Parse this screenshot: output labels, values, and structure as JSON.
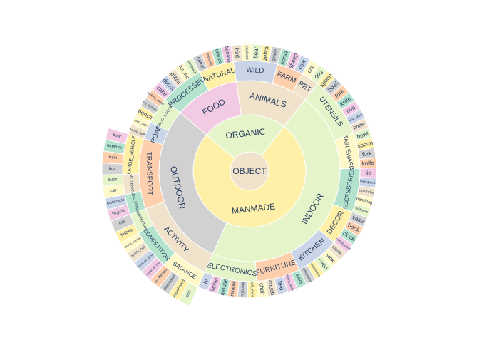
{
  "colors": {
    "green": "#e5f5c9",
    "yellow": "#fff0a8",
    "gray": "#d1d1d1",
    "orange": "#fdcfac",
    "teal": "#b3e2cd",
    "pink": "#f3cae3",
    "blue": "#cbd5e8",
    "tan": "#f1e2cc",
    "cream": "#fff8c8",
    "text": "#2a3f5f",
    "stroke": "#ffffff"
  },
  "chart_data": {
    "type": "sunburst",
    "title": "",
    "root": {
      "label": "OBJECT",
      "children": [
        {
          "label": "MANMADE",
          "children": [
            {
              "label": "INDOOR",
              "children": [
                {
                  "label": "UTENSILS",
                  "children": [
                    {
                      "label": "spoon",
                      "value": 1
                    },
                    {
                      "label": "bowl",
                      "value": 1
                    },
                    {
                      "label": "fork",
                      "value": 1
                    },
                    {
                      "label": "knife",
                      "value": 1
                    },
                    {
                      "label": "cup",
                      "value": 1
                    },
                    {
                      "label": "wine_glass",
                      "value": 1
                    },
                    {
                      "label": "bottle",
                      "value": 1
                    }
                  ]
                },
                {
                  "label": "TABLEWARE",
                  "children": [
                    {
                      "label": "bowl",
                      "value": 1
                    },
                    {
                      "label": "spoon",
                      "value": 1
                    },
                    {
                      "label": "fork",
                      "value": 1
                    },
                    {
                      "label": "knife",
                      "value": 1
                    }
                  ]
                },
                {
                  "label": "ACCESSORIES",
                  "children": [
                    {
                      "label": "tie",
                      "value": 1
                    },
                    {
                      "label": "backpack",
                      "value": 1
                    },
                    {
                      "label": "umbrella",
                      "value": 1
                    },
                    {
                      "label": "handbag",
                      "value": 1
                    },
                    {
                      "label": "suitcase",
                      "value": 1
                    }
                  ]
                },
                {
                  "label": "DECOR",
                  "children": [
                    {
                      "label": "vase",
                      "value": 1
                    },
                    {
                      "label": "book",
                      "value": 1
                    },
                    {
                      "label": "clock",
                      "value": 1
                    },
                    {
                      "label": "potted_plant",
                      "value": 1
                    }
                  ]
                },
                {
                  "label": "KITCHEN",
                  "children": [
                    {
                      "label": "toaster",
                      "value": 1
                    },
                    {
                      "label": "sink",
                      "value": 1
                    },
                    {
                      "label": "oven",
                      "value": 1
                    },
                    {
                      "label": "microwave",
                      "value": 1
                    },
                    {
                      "label": "refrigerator",
                      "value": 1
                    }
                  ]
                },
                {
                  "label": "FURNITURE",
                  "children": [
                    {
                      "label": "toilet",
                      "value": 1
                    },
                    {
                      "label": "dining_table",
                      "value": 1
                    },
                    {
                      "label": "bed",
                      "value": 1
                    },
                    {
                      "label": "couch",
                      "value": 1
                    },
                    {
                      "label": "chair",
                      "value": 1
                    }
                  ]
                },
                {
                  "label": "ELECTRONICS",
                  "children": [
                    {
                      "label": "cell_phone",
                      "value": 1
                    },
                    {
                      "label": "keyboard",
                      "value": 1
                    },
                    {
                      "label": "remote",
                      "value": 1
                    },
                    {
                      "label": "mouse",
                      "value": 1
                    },
                    {
                      "label": "laptop",
                      "value": 1
                    },
                    {
                      "label": "tv",
                      "value": 1
                    }
                  ]
                }
              ]
            },
            {
              "label": "OUTDOOR",
              "children": [
                {
                  "label": "ACTIVITY",
                  "children": [
                    {
                      "label": "BALANCE",
                      "children": [
                        {
                          "label": "skis",
                          "value": 1
                        },
                        {
                          "label": "snowboard",
                          "value": 1
                        },
                        {
                          "label": "skateboard",
                          "value": 1
                        },
                        {
                          "label": "surfboard",
                          "value": 1
                        }
                      ]
                    },
                    {
                      "label": "COMPETITION",
                      "children": [
                        {
                          "label": "baseball_bat",
                          "value": 1
                        },
                        {
                          "label": "baseball_glove",
                          "value": 1
                        },
                        {
                          "label": "sports_ball",
                          "value": 1
                        },
                        {
                          "label": "tennis_racket",
                          "value": 1
                        }
                      ]
                    },
                    {
                      "label": "RECREATION",
                      "children": [
                        {
                          "label": "frisbee",
                          "value": 1
                        },
                        {
                          "label": "kite",
                          "value": 1
                        }
                      ]
                    }
                  ]
                },
                {
                  "label": "TRANSPORT",
                  "children": [
                    {
                      "label": "SMALL_VEHICLE",
                      "children": [
                        {
                          "label": "bicycle",
                          "value": 1
                        },
                        {
                          "label": "motorcycle",
                          "value": 1
                        }
                      ]
                    },
                    {
                      "label": "CAR_VEHICLE",
                      "children": [
                        {
                          "label": "car",
                          "value": 1
                        },
                        {
                          "label": "truck",
                          "value": 1
                        }
                      ]
                    },
                    {
                      "label": "LARGE_VEHICLE",
                      "children": [
                        {
                          "label": "bus",
                          "value": 1
                        },
                        {
                          "label": "train",
                          "value": 1
                        },
                        {
                          "label": "airplane",
                          "value": 1
                        },
                        {
                          "label": "boat",
                          "value": 1
                        }
                      ]
                    }
                  ]
                },
                {
                  "label": "ROAD",
                  "children": [
                    {
                      "label": "traffic_light",
                      "value": 1
                    },
                    {
                      "label": "stop_sign",
                      "value": 1
                    }
                  ]
                },
                {
                  "label": "PUBLIC_UTILITIES",
                  "children": [
                    {
                      "label": "bench",
                      "value": 1
                    },
                    {
                      "label": "fire_hydrant",
                      "value": 1
                    },
                    {
                      "label": "parking_meter",
                      "value": 1
                    }
                  ]
                }
              ]
            }
          ]
        },
        {
          "label": "ORGANIC",
          "children": [
            {
              "label": "FOOD",
              "children": [
                {
                  "label": "PROCESSED",
                  "children": [
                    {
                      "label": "cake",
                      "value": 1
                    },
                    {
                      "label": "donut",
                      "value": 1
                    },
                    {
                      "label": "pizza",
                      "value": 1
                    },
                    {
                      "label": "hot_dog",
                      "value": 1
                    },
                    {
                      "label": "sandwich",
                      "value": 1
                    }
                  ]
                },
                {
                  "label": "NATURAL",
                  "children": [
                    {
                      "label": "carrot",
                      "value": 1
                    },
                    {
                      "label": "broccoli",
                      "value": 1
                    },
                    {
                      "label": "orange",
                      "value": 1
                    },
                    {
                      "label": "banana",
                      "value": 1
                    }
                  ]
                }
              ]
            },
            {
              "label": "ANIMALS",
              "children": [
                {
                  "label": "WILD",
                  "children": [
                    {
                      "label": "bird",
                      "value": 1
                    },
                    {
                      "label": "elephant",
                      "value": 1
                    },
                    {
                      "label": "bear",
                      "value": 1
                    },
                    {
                      "label": "zebra",
                      "value": 1
                    },
                    {
                      "label": "giraffe",
                      "value": 1
                    }
                  ]
                },
                {
                  "label": "FARM",
                  "children": [
                    {
                      "label": "horse",
                      "value": 1
                    },
                    {
                      "label": "sheep",
                      "value": 1
                    },
                    {
                      "label": "cow",
                      "value": 1
                    }
                  ]
                },
                {
                  "label": "PET",
                  "children": [
                    {
                      "label": "cat",
                      "value": 1
                    },
                    {
                      "label": "dog",
                      "value": 1
                    }
                  ]
                }
              ]
            }
          ]
        }
      ]
    }
  }
}
